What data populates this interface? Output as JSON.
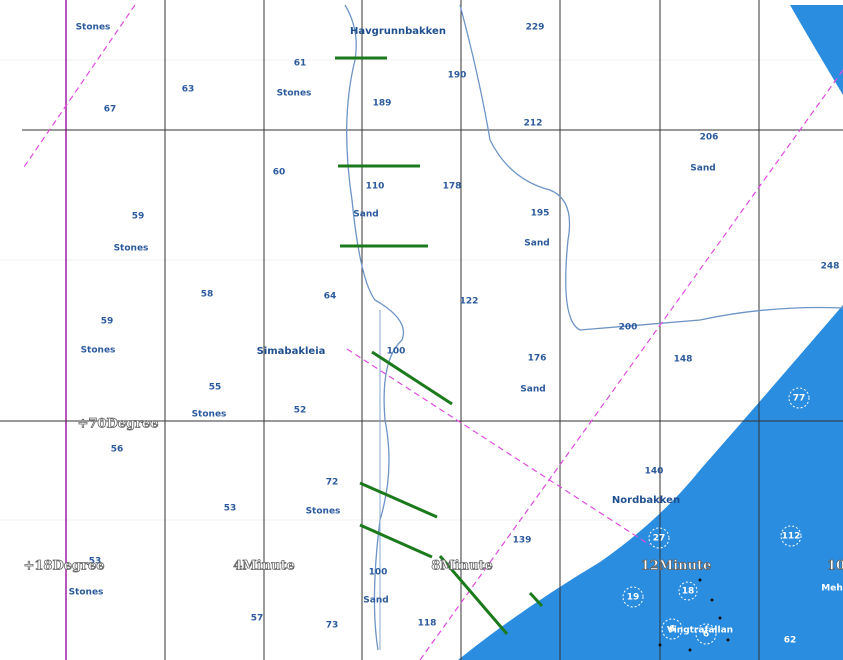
{
  "map": {
    "labels": [
      "Stones",
      "Havgrunnbakken",
      "229",
      "61",
      "63",
      "Stones",
      "190",
      "67",
      "189",
      "212",
      "206",
      "Sand",
      "60",
      "110",
      "178",
      "59",
      "Sand",
      "195",
      "Stones",
      "Sand",
      "248",
      "58",
      "64",
      "122",
      "59",
      "200",
      "Stones",
      "Simabakleia",
      "100",
      "176",
      "148",
      "55",
      "Sand",
      "77",
      "52",
      "Stones",
      "56",
      "140",
      "72",
      "Nordbakken",
      "53",
      "Stones",
      "27",
      "112",
      "139",
      "53",
      "Stones",
      "Meh",
      "100",
      "Sand",
      "18",
      "19",
      "57",
      "73",
      "118",
      "Vingtrafallan",
      "6",
      "6",
      "62"
    ],
    "grid_labels": [
      "+70Degree",
      "+18Degree",
      "4Minute",
      "8Minute",
      "12Minute",
      "10"
    ]
  }
}
